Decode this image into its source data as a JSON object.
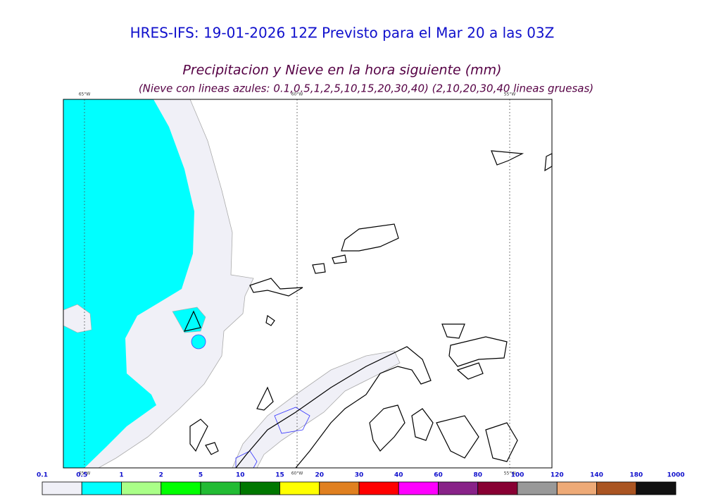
{
  "header": {
    "title": "HRES-IFS: 19-01-2026 12Z Previsto para el Mar 20 a las 03Z",
    "subtitle": "Precipitacion y Nieve en la hora siguiente (mm)",
    "note": "(Nieve con lineas azules: 0.1,0.5,1,2,5,10,15,20,30,40)  (2,10,20,30,40 lineas gruesas)"
  },
  "map": {
    "lon_labels": [
      "65°W",
      "60°W",
      "55°W"
    ]
  },
  "legend": {
    "levels": [
      0.1,
      0.5,
      1,
      2,
      5,
      10,
      15,
      20,
      30,
      40,
      60,
      80,
      100,
      120,
      140,
      180,
      1000
    ],
    "colors": [
      "#f0f0f7",
      "#00ffff",
      "#aaff88",
      "#00ff00",
      "#22bb33",
      "#007700",
      "#ffff00",
      "#e08020",
      "#ff0000",
      "#ff00ff",
      "#882288",
      "#880033",
      "#999999",
      "#eeaa77",
      "#aa5522",
      "#111111"
    ]
  }
}
